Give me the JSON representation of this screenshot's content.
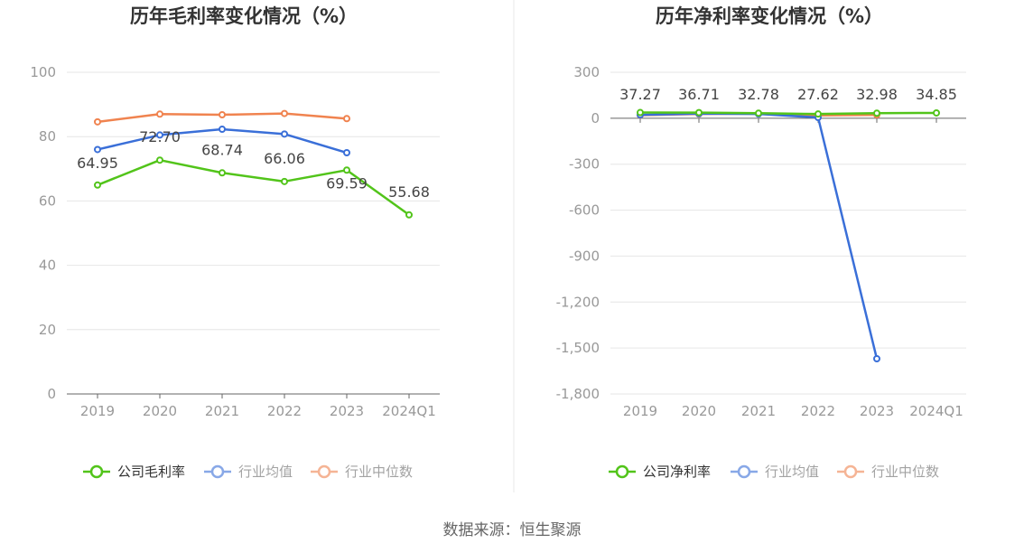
{
  "source_text": "数据来源：恒生聚源",
  "chart_data": [
    {
      "type": "line",
      "title": "历年毛利率变化情况（%）",
      "categories": [
        "2019",
        "2020",
        "2021",
        "2022",
        "2023",
        "2024Q1"
      ],
      "ylim": [
        0,
        100
      ],
      "yticks": [
        "0",
        "20",
        "40",
        "60",
        "80",
        "100"
      ],
      "ytick_values": [
        0,
        20,
        40,
        60,
        80,
        100
      ],
      "grid": true,
      "legend_position": "bottom",
      "series": [
        {
          "name": "公司毛利率",
          "color": "#52c41a",
          "labeled": true,
          "values": [
            64.95,
            72.7,
            68.74,
            66.06,
            69.59,
            55.68
          ],
          "labels": [
            "64.95",
            "72.70",
            "68.74",
            "66.06",
            "69.59",
            "55.68"
          ]
        },
        {
          "name": "行业均值",
          "color": "#3a6fd8",
          "labeled": false,
          "values": [
            76.0,
            80.5,
            82.3,
            80.8,
            75.0,
            null
          ]
        },
        {
          "name": "行业中位数",
          "color": "#f0834f",
          "labeled": false,
          "values": [
            84.6,
            87.0,
            86.8,
            87.2,
            85.6,
            null
          ]
        }
      ]
    },
    {
      "type": "line",
      "title": "历年净利率变化情况（%）",
      "categories": [
        "2019",
        "2020",
        "2021",
        "2022",
        "2023",
        "2024Q1"
      ],
      "ylim": [
        -1800,
        300
      ],
      "yticks": [
        "300",
        "0",
        "-300",
        "-600",
        "-900",
        "-1,200",
        "-1,500",
        "-1,800"
      ],
      "ytick_values": [
        300,
        0,
        -300,
        -600,
        -900,
        -1200,
        -1500,
        -1800
      ],
      "grid": true,
      "legend_position": "bottom",
      "series": [
        {
          "name": "公司净利率",
          "color": "#52c41a",
          "labeled": true,
          "values": [
            37.27,
            36.71,
            32.78,
            27.62,
            32.98,
            34.85
          ],
          "labels": [
            "37.27",
            "36.71",
            "32.78",
            "27.62",
            "32.98",
            "34.85"
          ]
        },
        {
          "name": "行业均值",
          "color": "#3a6fd8",
          "labeled": false,
          "values": [
            22,
            30,
            28,
            5,
            -1570,
            null
          ]
        },
        {
          "name": "行业中位数",
          "color": "#f0834f",
          "labeled": false,
          "values": [
            20,
            28,
            30,
            18,
            22,
            null
          ]
        }
      ]
    }
  ]
}
